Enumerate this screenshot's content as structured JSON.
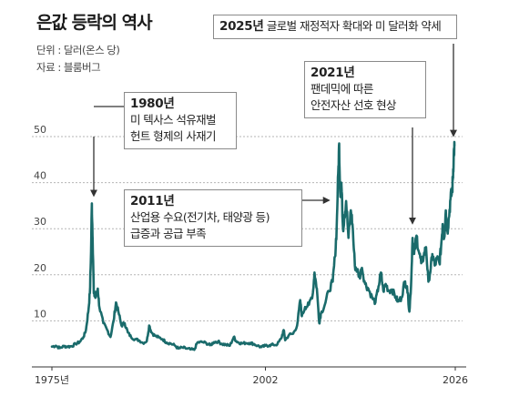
{
  "title": "은값 등락의 역사",
  "unit_note": "단위 : 달러(온스 당)",
  "source_note": "자료 : 블룸버그",
  "colors": {
    "line": "#1a6b6b",
    "grid": "#b5b5b5",
    "axis": "#333333",
    "arrow": "#333333"
  },
  "chart_data": {
    "type": "line",
    "title": "은값 등락의 역사",
    "ylabel": "",
    "xlabel": "",
    "x_range": [
      1975,
      2026
    ],
    "ylim": [
      0,
      50
    ],
    "yticks": [
      10,
      20,
      30,
      40,
      50
    ],
    "xtick_labels": [
      {
        "x": 1975,
        "label": "1975년"
      },
      {
        "x": 2002,
        "label": "2002"
      },
      {
        "x": 2026,
        "label": "2026"
      }
    ],
    "grid": "horizontal-dashed",
    "series": [
      {
        "values": [
          [
            1975.0,
            4.4
          ],
          [
            1975.5,
            4.6
          ],
          [
            1976.0,
            4.1
          ],
          [
            1976.5,
            4.5
          ],
          [
            1977.0,
            4.4
          ],
          [
            1977.5,
            4.5
          ],
          [
            1978.0,
            5.0
          ],
          [
            1978.5,
            5.4
          ],
          [
            1979.0,
            6.5
          ],
          [
            1979.3,
            8.0
          ],
          [
            1979.6,
            12.0
          ],
          [
            1979.8,
            16.0
          ],
          [
            1979.95,
            25.0
          ],
          [
            1980.05,
            35.5
          ],
          [
            1980.15,
            28.0
          ],
          [
            1980.3,
            16.0
          ],
          [
            1980.5,
            15.0
          ],
          [
            1980.8,
            17.0
          ],
          [
            1981.0,
            13.0
          ],
          [
            1981.5,
            9.5
          ],
          [
            1982.0,
            8.0
          ],
          [
            1982.4,
            6.5
          ],
          [
            1982.8,
            10.0
          ],
          [
            1983.1,
            14.0
          ],
          [
            1983.4,
            12.0
          ],
          [
            1983.8,
            9.0
          ],
          [
            1984.2,
            9.5
          ],
          [
            1984.6,
            7.5
          ],
          [
            1985.0,
            6.5
          ],
          [
            1985.5,
            6.0
          ],
          [
            1986.0,
            5.8
          ],
          [
            1986.5,
            5.2
          ],
          [
            1987.0,
            5.6
          ],
          [
            1987.3,
            9.0
          ],
          [
            1987.6,
            7.5
          ],
          [
            1988.0,
            6.8
          ],
          [
            1988.5,
            6.4
          ],
          [
            1989.0,
            6.0
          ],
          [
            1989.5,
            5.3
          ],
          [
            1990.0,
            5.1
          ],
          [
            1990.5,
            4.7
          ],
          [
            1991.0,
            4.0
          ],
          [
            1991.5,
            4.2
          ],
          [
            1992.0,
            4.0
          ],
          [
            1992.5,
            3.8
          ],
          [
            1993.0,
            3.7
          ],
          [
            1993.4,
            5.3
          ],
          [
            1994.0,
            5.4
          ],
          [
            1994.5,
            5.2
          ],
          [
            1995.0,
            4.7
          ],
          [
            1995.5,
            5.4
          ],
          [
            1996.0,
            5.5
          ],
          [
            1996.5,
            5.0
          ],
          [
            1997.0,
            4.8
          ],
          [
            1997.5,
            4.6
          ],
          [
            1998.0,
            6.5
          ],
          [
            1998.3,
            5.6
          ],
          [
            1998.6,
            5.3
          ],
          [
            1999.0,
            5.1
          ],
          [
            1999.5,
            5.2
          ],
          [
            2000.0,
            5.2
          ],
          [
            2000.5,
            5.0
          ],
          [
            2001.0,
            4.6
          ],
          [
            2001.5,
            4.3
          ],
          [
            2002.0,
            4.6
          ],
          [
            2002.5,
            4.7
          ],
          [
            2003.0,
            4.8
          ],
          [
            2003.5,
            4.9
          ],
          [
            2004.0,
            6.2
          ],
          [
            2004.3,
            8.0
          ],
          [
            2004.5,
            5.8
          ],
          [
            2005.0,
            7.0
          ],
          [
            2005.5,
            7.2
          ],
          [
            2006.0,
            9.0
          ],
          [
            2006.4,
            14.5
          ],
          [
            2006.6,
            11.0
          ],
          [
            2007.0,
            13.0
          ],
          [
            2007.5,
            13.5
          ],
          [
            2008.0,
            16.0
          ],
          [
            2008.2,
            20.5
          ],
          [
            2008.5,
            17.0
          ],
          [
            2008.8,
            9.5
          ],
          [
            2009.0,
            11.5
          ],
          [
            2009.5,
            13.5
          ],
          [
            2010.0,
            16.5
          ],
          [
            2010.5,
            18.5
          ],
          [
            2010.8,
            24.0
          ],
          [
            2011.0,
            30.0
          ],
          [
            2011.2,
            42.0
          ],
          [
            2011.32,
            48.5
          ],
          [
            2011.45,
            38.0
          ],
          [
            2011.6,
            40.0
          ],
          [
            2011.8,
            30.0
          ],
          [
            2012.0,
            33.0
          ],
          [
            2012.2,
            36.0
          ],
          [
            2012.5,
            28.0
          ],
          [
            2012.8,
            34.0
          ],
          [
            2013.0,
            31.0
          ],
          [
            2013.3,
            22.0
          ],
          [
            2013.6,
            21.0
          ],
          [
            2013.9,
            19.5
          ],
          [
            2014.2,
            21.5
          ],
          [
            2014.6,
            18.0
          ],
          [
            2015.0,
            17.0
          ],
          [
            2015.5,
            15.0
          ],
          [
            2015.9,
            14.0
          ],
          [
            2016.3,
            17.5
          ],
          [
            2016.6,
            20.5
          ],
          [
            2016.9,
            16.5
          ],
          [
            2017.2,
            18.0
          ],
          [
            2017.6,
            16.5
          ],
          [
            2018.0,
            16.8
          ],
          [
            2018.5,
            15.0
          ],
          [
            2018.8,
            14.2
          ],
          [
            2019.2,
            15.0
          ],
          [
            2019.6,
            18.5
          ],
          [
            2019.9,
            17.5
          ],
          [
            2020.2,
            12.0
          ],
          [
            2020.4,
            17.5
          ],
          [
            2020.6,
            28.0
          ],
          [
            2020.8,
            24.5
          ],
          [
            2021.1,
            28.5
          ],
          [
            2021.4,
            25.0
          ],
          [
            2021.7,
            22.5
          ],
          [
            2022.0,
            24.0
          ],
          [
            2022.3,
            26.0
          ],
          [
            2022.6,
            18.5
          ],
          [
            2022.9,
            21.5
          ],
          [
            2023.1,
            24.5
          ],
          [
            2023.4,
            22.0
          ],
          [
            2023.7,
            23.5
          ],
          [
            2024.0,
            22.5
          ],
          [
            2024.2,
            26.0
          ],
          [
            2024.4,
            31.0
          ],
          [
            2024.6,
            28.0
          ],
          [
            2024.8,
            34.0
          ],
          [
            2025.0,
            29.5
          ],
          [
            2025.2,
            32.5
          ],
          [
            2025.4,
            36.5
          ],
          [
            2025.6,
            38.0
          ],
          [
            2025.7,
            41.0
          ],
          [
            2025.8,
            46.0
          ],
          [
            2025.9,
            48.0
          ]
        ]
      }
    ],
    "annotations": [
      {
        "year_text": "1980년",
        "lines": [
          "미 텍사스 석유재벌",
          "헌트 형제의 사재기"
        ],
        "target": [
          1980.05,
          35.5
        ]
      },
      {
        "year_text": "2011년",
        "lines": [
          "산업용 수요(전기차, 태양광 등)",
          "급증과 공급 부족"
        ],
        "target": [
          2011.0,
          42.0
        ]
      },
      {
        "year_text": "2021년",
        "lines": [
          "팬데믹에 따른",
          "안전자산 선호 현상"
        ],
        "target": [
          2021.1,
          28.5
        ]
      },
      {
        "year_text": "2025년",
        "lines": [
          "글로벌 재정적자 확대와 미 달러화 약세"
        ],
        "target": [
          2025.85,
          47.5
        ]
      }
    ]
  }
}
